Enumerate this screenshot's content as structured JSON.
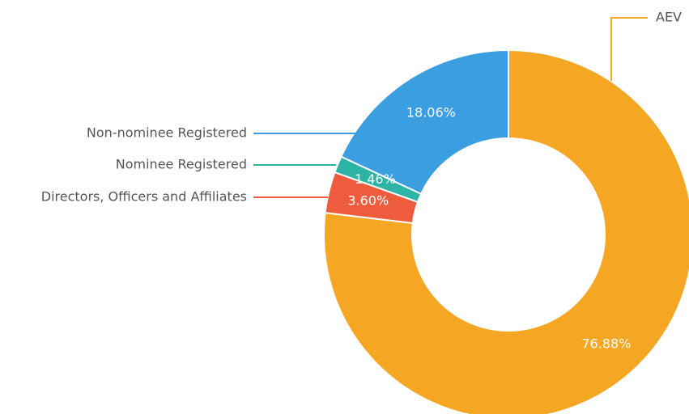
{
  "chart_data": {
    "type": "donut",
    "categories": [
      "AEV",
      "Directors, Officers and Affiliates",
      "Nominee Registered",
      "Non-nominee Registered"
    ],
    "values": [
      76.88,
      3.6,
      1.46,
      18.06
    ],
    "value_labels": [
      "76.88%",
      "3.60%",
      "1.46%",
      "18.06%"
    ],
    "colors": [
      "#f5a623",
      "#ee5c3d",
      "#2cb5a5",
      "#3a9ee0"
    ]
  }
}
